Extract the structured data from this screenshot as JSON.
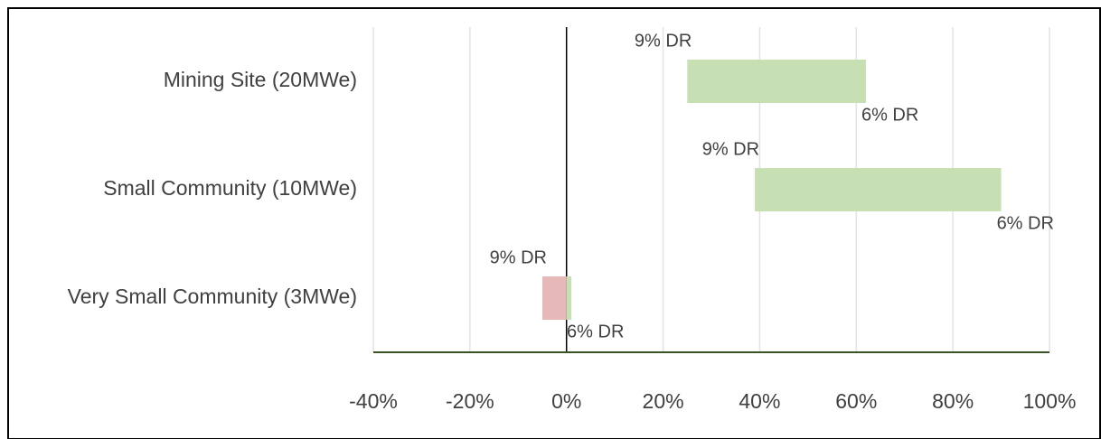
{
  "chart_data": {
    "type": "floating_bar",
    "orientation": "horizontal",
    "categories": [
      "Mining Site (20MWe)",
      "Small Community (10MWe)",
      "Very Small Community (3MWe)"
    ],
    "series": [
      {
        "name": "9% DR",
        "values": [
          25,
          39,
          -5
        ]
      },
      {
        "name": "6% DR",
        "values": [
          62,
          90,
          1
        ]
      }
    ],
    "color": "#c6e0b4",
    "negative_color": "#e6b9b8",
    "xlim": [
      -40,
      100
    ],
    "xticks": [
      {
        "value": -40,
        "label": "-40%"
      },
      {
        "value": -20,
        "label": "-20%"
      },
      {
        "value": 0,
        "label": "0%"
      },
      {
        "value": 20,
        "label": "20%"
      },
      {
        "value": 40,
        "label": "40%"
      },
      {
        "value": 60,
        "label": "60%"
      },
      {
        "value": 80,
        "label": "80%"
      },
      {
        "value": 100,
        "label": "100%"
      }
    ],
    "grid": true
  }
}
